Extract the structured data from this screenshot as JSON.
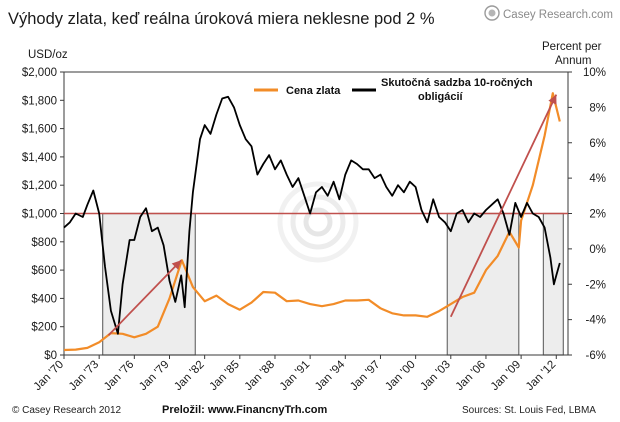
{
  "title": "Výhody zlata, keď reálna úroková miera neklesne pod 2 %",
  "logo": {
    "text": "Casey Research.com",
    "brand_color": "#8a8a8a"
  },
  "footer": {
    "left": "© Casey Research 2012",
    "center": "Preložil: www.FinancnyTrh.com",
    "right": "Sources: St. Louis Fed, LBMA"
  },
  "chart_data": {
    "type": "line",
    "left_axis": {
      "label": "USD/oz",
      "range": [
        0,
        2000
      ],
      "ticks": [
        "$0",
        "$200",
        "$400",
        "$600",
        "$800",
        "$1,000",
        "$1,200",
        "$1,400",
        "$1,600",
        "$1,800",
        "$2,000"
      ],
      "tick_values": [
        0,
        200,
        400,
        600,
        800,
        1000,
        1200,
        1400,
        1600,
        1800,
        2000
      ]
    },
    "right_axis": {
      "label": "Percent per Annum",
      "range": [
        -6,
        10
      ],
      "ticks": [
        "-6%",
        "-4%",
        "-2%",
        "0%",
        "2%",
        "4%",
        "6%",
        "8%",
        "10%"
      ],
      "tick_values": [
        -6,
        -4,
        -2,
        0,
        2,
        4,
        6,
        8,
        10
      ]
    },
    "x_axis": {
      "range": [
        1970,
        2013
      ],
      "ticks": [
        "Jan '70",
        "Jan '73",
        "Jan '76",
        "Jan '79",
        "Jan '82",
        "Jan '85",
        "Jan '88",
        "Jan '91",
        "Jan '94",
        "Jan '97",
        "Jan '00",
        "Jan '03",
        "Jan '06",
        "Jan '09",
        "Jan '12"
      ],
      "tick_values": [
        1970,
        1973,
        1976,
        1979,
        1982,
        1985,
        1988,
        1991,
        1994,
        1997,
        2000,
        2003,
        2006,
        2009,
        2012
      ]
    },
    "legend": {
      "placement": "top-center"
    },
    "series": [
      {
        "name": "Cena zlata",
        "axis": "left",
        "color": "#f28c28",
        "points": [
          [
            1970,
            35
          ],
          [
            1971,
            38
          ],
          [
            1972,
            50
          ],
          [
            1973,
            90
          ],
          [
            1974,
            155
          ],
          [
            1975,
            150
          ],
          [
            1976,
            125
          ],
          [
            1977,
            150
          ],
          [
            1978,
            200
          ],
          [
            1979,
            400
          ],
          [
            1980.05,
            670
          ],
          [
            1980.5,
            580
          ],
          [
            1981,
            480
          ],
          [
            1982,
            380
          ],
          [
            1983,
            420
          ],
          [
            1984,
            360
          ],
          [
            1985,
            320
          ],
          [
            1986,
            370
          ],
          [
            1987,
            445
          ],
          [
            1988,
            440
          ],
          [
            1989,
            380
          ],
          [
            1990,
            385
          ],
          [
            1991,
            360
          ],
          [
            1992,
            345
          ],
          [
            1993,
            360
          ],
          [
            1994,
            385
          ],
          [
            1995,
            385
          ],
          [
            1996,
            390
          ],
          [
            1997,
            330
          ],
          [
            1998,
            295
          ],
          [
            1999,
            280
          ],
          [
            2000,
            280
          ],
          [
            2001,
            270
          ],
          [
            2002,
            310
          ],
          [
            2003,
            360
          ],
          [
            2004,
            410
          ],
          [
            2005,
            440
          ],
          [
            2006,
            600
          ],
          [
            2007,
            700
          ],
          [
            2008,
            870
          ],
          [
            2008.8,
            760
          ],
          [
            2009,
            950
          ],
          [
            2010,
            1200
          ],
          [
            2011,
            1550
          ],
          [
            2011.7,
            1850
          ],
          [
            2012.3,
            1650
          ]
        ]
      },
      {
        "name": "Skutočná sadzba 10-ročných obligácií",
        "axis": "right",
        "color": "#000000",
        "points": [
          [
            1970,
            1.2
          ],
          [
            1970.5,
            1.5
          ],
          [
            1971,
            2.0
          ],
          [
            1971.6,
            1.8
          ],
          [
            1972,
            2.5
          ],
          [
            1972.5,
            3.3
          ],
          [
            1973,
            2.0
          ],
          [
            1973.5,
            -1.0
          ],
          [
            1974,
            -3.5
          ],
          [
            1974.6,
            -4.8
          ],
          [
            1975,
            -2.0
          ],
          [
            1975.6,
            0.5
          ],
          [
            1976,
            0.5
          ],
          [
            1976.5,
            1.8
          ],
          [
            1977,
            2.3
          ],
          [
            1977.5,
            1.0
          ],
          [
            1978,
            1.2
          ],
          [
            1978.5,
            0.2
          ],
          [
            1979,
            -1.8
          ],
          [
            1979.5,
            -3.0
          ],
          [
            1980,
            -1.5
          ],
          [
            1980.3,
            -3.3
          ],
          [
            1980.7,
            1.0
          ],
          [
            1981,
            3.2
          ],
          [
            1981.6,
            6.2
          ],
          [
            1982,
            7.0
          ],
          [
            1982.5,
            6.5
          ],
          [
            1983,
            7.6
          ],
          [
            1983.5,
            8.5
          ],
          [
            1984,
            8.6
          ],
          [
            1984.5,
            8.0
          ],
          [
            1985,
            7.0
          ],
          [
            1985.5,
            6.2
          ],
          [
            1986,
            5.8
          ],
          [
            1986.5,
            4.2
          ],
          [
            1987,
            4.8
          ],
          [
            1987.5,
            5.3
          ],
          [
            1988,
            4.5
          ],
          [
            1988.5,
            5.0
          ],
          [
            1989,
            4.2
          ],
          [
            1989.5,
            3.5
          ],
          [
            1990,
            4.0
          ],
          [
            1990.5,
            3.0
          ],
          [
            1991,
            2.0
          ],
          [
            1991.5,
            3.2
          ],
          [
            1992,
            3.5
          ],
          [
            1992.5,
            3.0
          ],
          [
            1993,
            3.8
          ],
          [
            1993.5,
            2.8
          ],
          [
            1994,
            4.2
          ],
          [
            1994.5,
            5.0
          ],
          [
            1995,
            4.8
          ],
          [
            1995.5,
            4.5
          ],
          [
            1996,
            4.5
          ],
          [
            1996.5,
            4.0
          ],
          [
            1997,
            4.2
          ],
          [
            1997.5,
            3.5
          ],
          [
            1998,
            3.0
          ],
          [
            1998.5,
            3.6
          ],
          [
            1999,
            3.2
          ],
          [
            1999.5,
            3.8
          ],
          [
            2000,
            3.5
          ],
          [
            2000.5,
            2.2
          ],
          [
            2001,
            1.5
          ],
          [
            2001.5,
            2.8
          ],
          [
            2002,
            1.8
          ],
          [
            2002.5,
            1.5
          ],
          [
            2003,
            1.0
          ],
          [
            2003.5,
            2.0
          ],
          [
            2004,
            2.2
          ],
          [
            2004.5,
            1.5
          ],
          [
            2005,
            2.0
          ],
          [
            2005.5,
            1.8
          ],
          [
            2006,
            2.2
          ],
          [
            2006.5,
            2.5
          ],
          [
            2007,
            2.8
          ],
          [
            2007.5,
            2.0
          ],
          [
            2008,
            0.8
          ],
          [
            2008.5,
            2.6
          ],
          [
            2009,
            1.8
          ],
          [
            2009.5,
            2.6
          ],
          [
            2010,
            2.0
          ],
          [
            2010.5,
            1.8
          ],
          [
            2011,
            1.2
          ],
          [
            2011.5,
            -0.5
          ],
          [
            2011.8,
            -2.0
          ],
          [
            2012,
            -1.5
          ],
          [
            2012.3,
            -0.8
          ]
        ]
      }
    ],
    "shaded_periods": [
      [
        1973.3,
        1981.2
      ],
      [
        2002.7,
        2008.8
      ],
      [
        2010.9,
        2012.6
      ]
    ],
    "reference_line": {
      "axis": "right",
      "value": 2,
      "color": "#c0504d"
    },
    "trend_arrows": [
      {
        "from": [
          1973.8,
          140
        ],
        "to": [
          1980.0,
          670
        ],
        "color": "#c0504d"
      },
      {
        "from": [
          2003.0,
          270
        ],
        "to": [
          2012.0,
          1840
        ],
        "color": "#c0504d"
      }
    ]
  }
}
